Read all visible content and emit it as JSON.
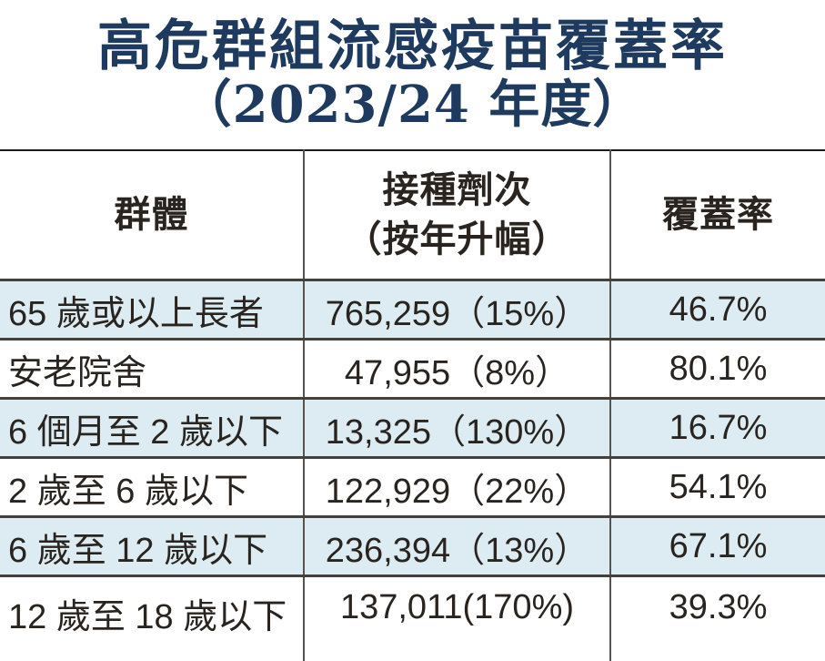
{
  "title": {
    "line1": "高危群組流感疫苗覆蓋率",
    "line2": "（2023/24 年度）"
  },
  "colors": {
    "title_navy": "#1e3a5e",
    "row_alt_blue": "#dcecf2",
    "text_black": "#29241f",
    "border_dark": "#44413c",
    "border_vertical": "#57544f"
  },
  "table": {
    "headers": {
      "group": "群體",
      "doses_line1": "接種劑次",
      "doses_line2": "（按年升幅）",
      "coverage": "覆蓋率"
    },
    "rows": [
      {
        "group": "65 歲或以上長者",
        "doses": "765,259（15%）",
        "coverage": "46.7%"
      },
      {
        "group": "安老院舍",
        "doses": "47,955（8%）",
        "coverage": "80.1%"
      },
      {
        "group": "6 個月至 2 歲以下",
        "doses": "13,325（130%）",
        "coverage": "16.7%"
      },
      {
        "group": "2 歲至 6 歲以下",
        "doses": "122,929（22%）",
        "coverage": "54.1%"
      },
      {
        "group": "6 歲至 12 歲以下",
        "doses": "236,394（13%）",
        "coverage": "67.1%"
      },
      {
        "group": "12 歲至 18 歲以下",
        "doses": "137,011(170%)",
        "coverage": "39.3%"
      }
    ]
  },
  "chart_data": {
    "type": "table",
    "title": "高危群組流感疫苗覆蓋率（2023/24 年度）",
    "columns": [
      "群體",
      "接種劑次（按年升幅）",
      "覆蓋率"
    ],
    "categories": [
      "65歲或以上長者",
      "安老院舍",
      "6個月至2歲以下",
      "2歲至6歲以下",
      "6歲至12歲以下",
      "12歲至18歲以下"
    ],
    "series": [
      {
        "name": "接種劑次",
        "values": [
          765259,
          47955,
          13325,
          122929,
          236394,
          137011
        ]
      },
      {
        "name": "按年升幅(%)",
        "values": [
          15,
          8,
          130,
          22,
          13,
          170
        ]
      },
      {
        "name": "覆蓋率(%)",
        "values": [
          46.7,
          80.1,
          16.7,
          54.1,
          67.1,
          39.3
        ]
      }
    ],
    "layout": "alternating row shading light blue / white, black grid rules, navy serif headline"
  }
}
